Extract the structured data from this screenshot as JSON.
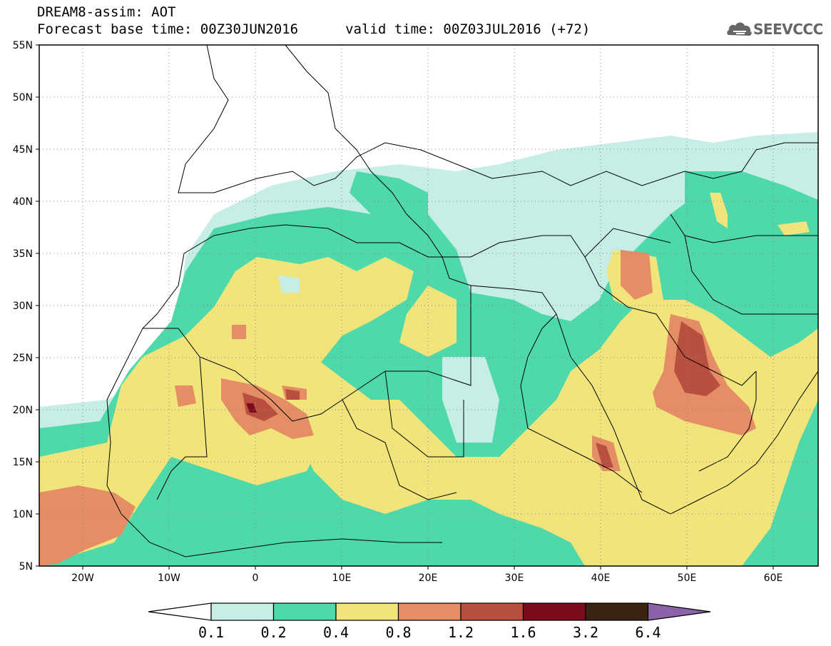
{
  "header": {
    "title": "DREAM8-assim: AOT",
    "base_time_label": "Forecast base time:",
    "base_time": "00Z30JUN2016",
    "valid_time_label": "valid time:",
    "valid_time": "00Z03JUL2016 (+72)"
  },
  "logo": {
    "text": "SEEVCCC",
    "icon": "cloud-icon"
  },
  "map": {
    "variable": "AOT",
    "projection": "lat-lon",
    "lon_range": [
      -25,
      65
    ],
    "lat_range": [
      5,
      55
    ],
    "lat_ticks": [
      "55N",
      "50N",
      "45N",
      "40N",
      "35N",
      "30N",
      "25N",
      "20N",
      "15N",
      "10N",
      "5N"
    ],
    "lon_ticks": [
      "20W",
      "10W",
      "0",
      "10E",
      "20E",
      "30E",
      "40E",
      "50E",
      "60E"
    ],
    "grid": "dotted"
  },
  "colorbar": {
    "levels": [
      "0.1",
      "0.2",
      "0.4",
      "0.8",
      "1.2",
      "1.6",
      "3.2",
      "6.4"
    ],
    "colors": [
      "#ffffff",
      "#c6eee6",
      "#4fd9aa",
      "#f1e47a",
      "#e58d64",
      "#b9503f",
      "#7c0b1e",
      "#3b2414",
      "#8a63ab"
    ]
  }
}
